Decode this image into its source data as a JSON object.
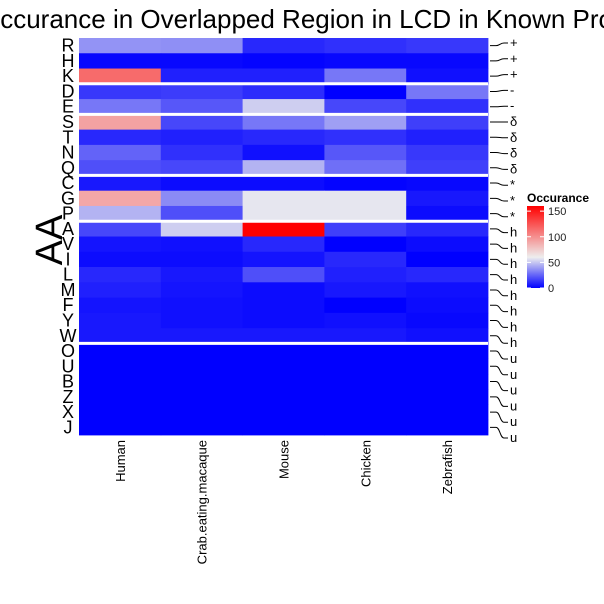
{
  "chart_data": {
    "type": "heatmap",
    "title": "Occurance in Overlapped Region in LCD in Known Proteins",
    "ylabel": "AA",
    "xlabel": "",
    "columns": [
      "Human",
      "Crab.eating.macaque",
      "Mouse",
      "Chicken",
      "Zebrafish"
    ],
    "rows": [
      "R",
      "H",
      "K",
      "D",
      "E",
      "S",
      "T",
      "N",
      "Q",
      "C",
      "G",
      "P",
      "A",
      "V",
      "I",
      "L",
      "M",
      "F",
      "Y",
      "W",
      "O",
      "U",
      "B",
      "Z",
      "X",
      "J"
    ],
    "row_groups": [
      "+",
      "+",
      "+",
      "-",
      "-",
      "δ",
      "δ",
      "δ",
      "δ",
      "*",
      "*",
      "*",
      "h",
      "h",
      "h",
      "h",
      "h",
      "h",
      "h",
      "h",
      "u",
      "u",
      "u",
      "u",
      "u",
      "u"
    ],
    "values": [
      [
        37,
        36,
        10,
        12,
        14
      ],
      [
        2,
        2,
        1,
        2,
        2
      ],
      [
        115,
        8,
        8,
        30,
        4
      ],
      [
        14,
        15,
        11,
        0,
        30
      ],
      [
        30,
        22,
        52,
        18,
        12
      ],
      [
        92,
        18,
        30,
        40,
        16
      ],
      [
        10,
        8,
        10,
        12,
        8
      ],
      [
        25,
        12,
        4,
        22,
        14
      ],
      [
        20,
        18,
        45,
        28,
        16
      ],
      [
        6,
        3,
        3,
        1,
        2
      ],
      [
        90,
        35,
        58,
        58,
        6
      ],
      [
        45,
        20,
        58,
        58,
        3
      ],
      [
        18,
        52,
        160,
        16,
        10
      ],
      [
        5,
        4,
        10,
        0,
        3
      ],
      [
        3,
        3,
        5,
        10,
        0
      ],
      [
        10,
        6,
        20,
        8,
        10
      ],
      [
        8,
        5,
        3,
        6,
        4
      ],
      [
        5,
        4,
        3,
        0,
        3
      ],
      [
        6,
        4,
        3,
        4,
        2
      ],
      [
        6,
        6,
        6,
        6,
        4
      ],
      [
        0,
        0,
        0,
        0,
        0
      ],
      [
        0,
        0,
        0,
        0,
        0
      ],
      [
        0,
        0,
        0,
        0,
        0
      ],
      [
        0,
        0,
        0,
        0,
        0
      ],
      [
        0,
        0,
        0,
        0,
        0
      ],
      [
        0,
        0,
        0,
        0,
        0
      ]
    ],
    "group_breaks_after_rows": [
      2,
      4,
      8,
      11,
      19
    ],
    "colorscale": {
      "low": "#0000ff",
      "mid": "#eeeeee",
      "high": "#ff0000",
      "min": 0,
      "mid_value": 60,
      "max": 160
    },
    "legend": {
      "title": "Occurance",
      "ticks": [
        0,
        50,
        100,
        150
      ],
      "placement": "right"
    }
  }
}
